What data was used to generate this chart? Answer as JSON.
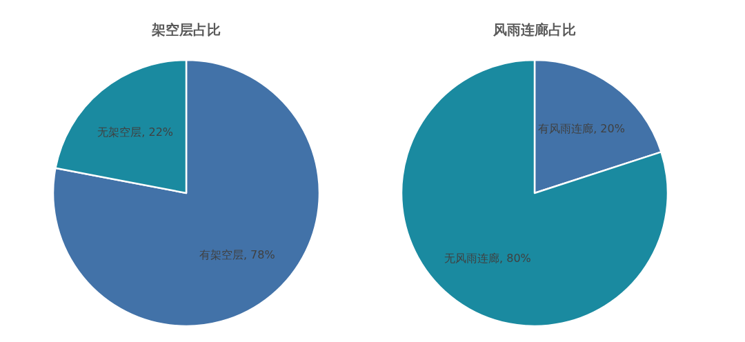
{
  "chart_data": [
    {
      "type": "pie",
      "title": "架空层占比",
      "categories": [
        "有架空层",
        "无架空层"
      ],
      "values": [
        78,
        22
      ],
      "colors": [
        "#4272a8",
        "#1a8aa0"
      ],
      "value_labels": [
        "78%",
        "22%"
      ]
    },
    {
      "type": "pie",
      "title": "风雨连廊占比",
      "categories": [
        "有风雨连廊",
        "无风雨连廊"
      ],
      "values": [
        20,
        80
      ],
      "colors": [
        "#4272a8",
        "#1a8aa0"
      ],
      "value_labels": [
        "20%",
        "80%"
      ]
    }
  ]
}
